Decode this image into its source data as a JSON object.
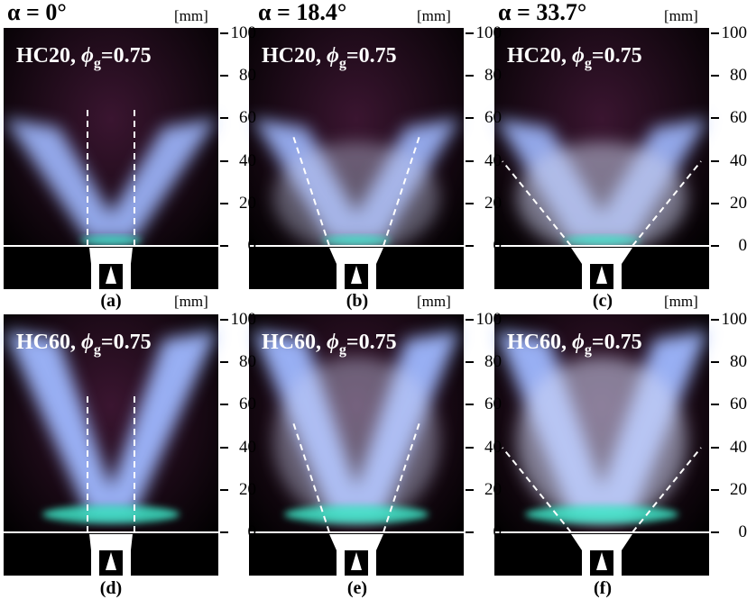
{
  "columns": [
    {
      "header": "α = 0°",
      "unit": "[mm]"
    },
    {
      "header": "α = 18.4°",
      "unit": "[mm]"
    },
    {
      "header": "α = 33.7°",
      "unit": "[mm]"
    }
  ],
  "rows": [
    {
      "fuel": "HC20",
      "phi_symbol": "ϕ",
      "phi_sub": "g",
      "phi_value": "=0.75"
    },
    {
      "fuel": "HC60",
      "phi_symbol": "ϕ",
      "phi_sub": "g",
      "phi_value": "=0.75"
    }
  ],
  "panels": [
    {
      "caption": "(a)",
      "alpha_deg": 0,
      "row": 0
    },
    {
      "caption": "(b)",
      "alpha_deg": 18.4,
      "row": 0
    },
    {
      "caption": "(c)",
      "alpha_deg": 33.7,
      "row": 0
    },
    {
      "caption": "(d)",
      "alpha_deg": 0,
      "row": 1
    },
    {
      "caption": "(e)",
      "alpha_deg": 18.4,
      "row": 1
    },
    {
      "caption": "(f)",
      "alpha_deg": 33.7,
      "row": 1
    }
  ],
  "axis": {
    "ticks": [
      "100",
      "80",
      "60",
      "40",
      "20",
      "0"
    ]
  },
  "colors": {
    "flame_blue": "#9fb8ff",
    "flame_cyan": "#40f0d0",
    "background": "#000000",
    "guide_line": "#ffffff"
  }
}
